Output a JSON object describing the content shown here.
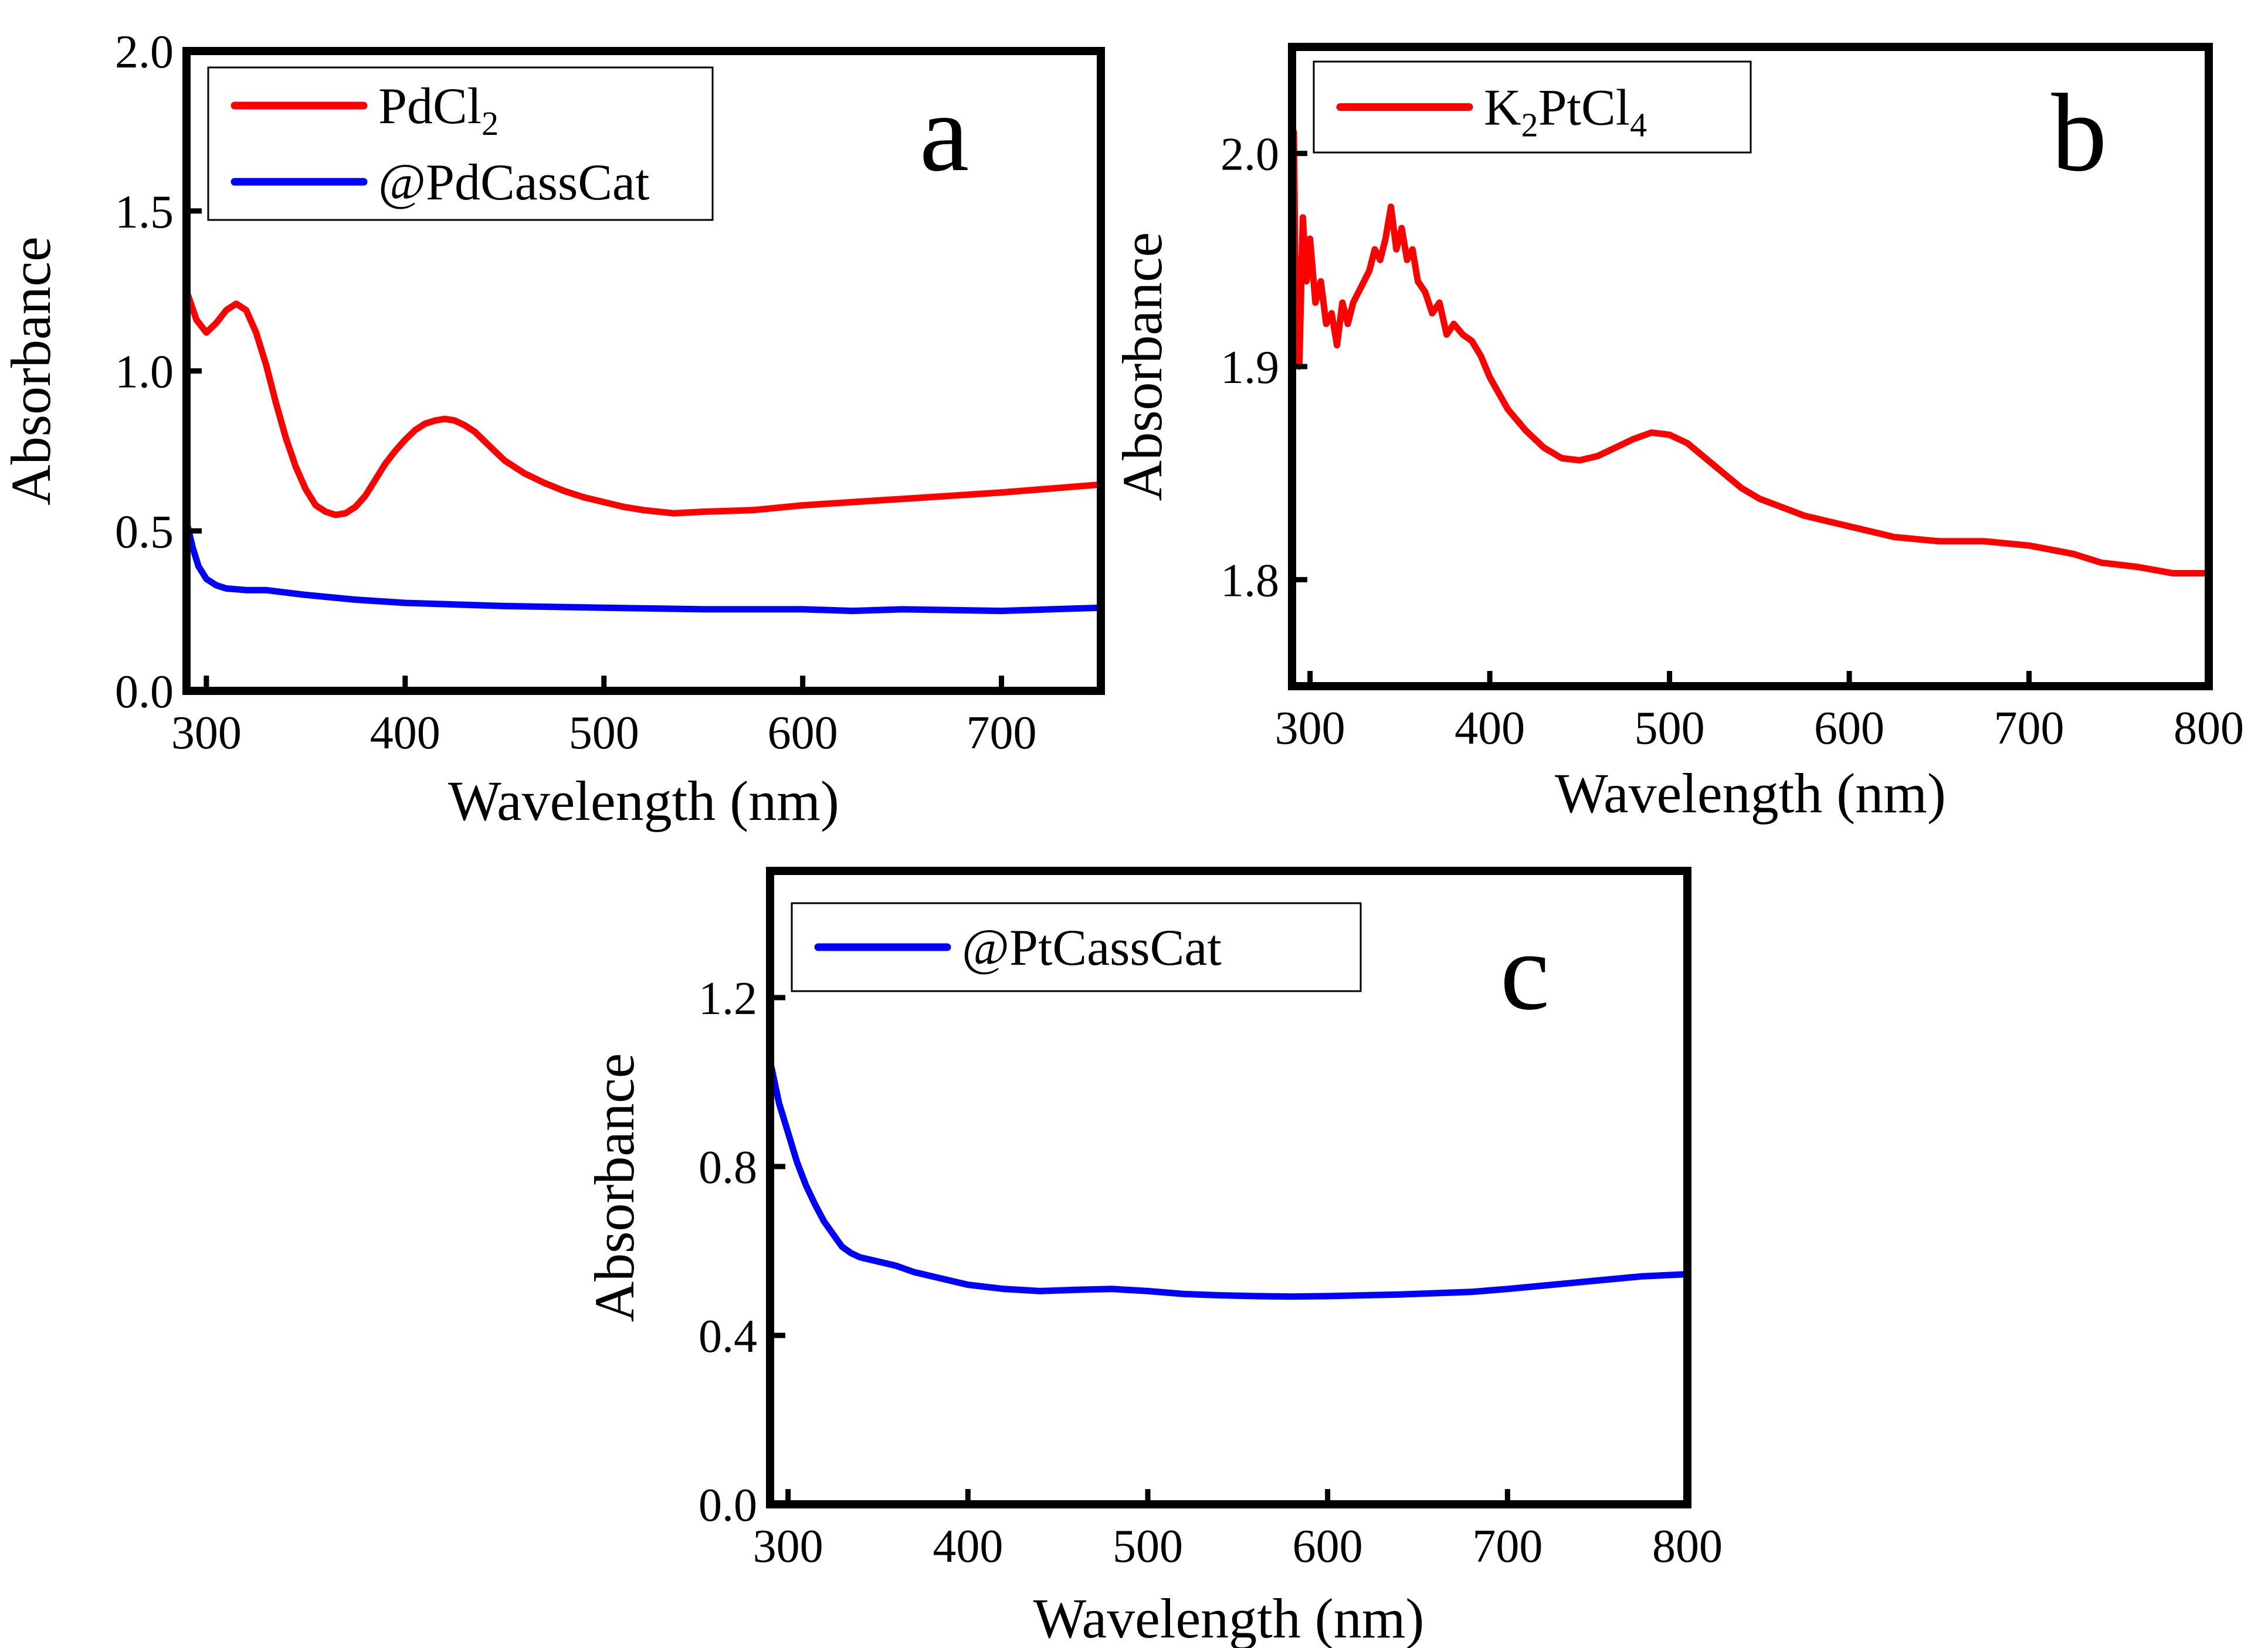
{
  "chart_data": [
    {
      "panel": "a",
      "type": "line",
      "xlabel": "Wavelength (nm)",
      "ylabel": "Absorbance",
      "xlim": [
        290,
        750
      ],
      "ylim": [
        0.0,
        2.0
      ],
      "xticks": [
        300,
        400,
        500,
        600,
        700
      ],
      "yticks": [
        0.0,
        0.5,
        1.0,
        1.5,
        2.0
      ],
      "ytick_decimals": 1,
      "legend_position": "top-left",
      "series": [
        {
          "name": "PdCl2",
          "label_main": "PdCl",
          "label_sub": "2",
          "label_tail": "",
          "color": "#ff0000",
          "x": [
            290,
            295,
            300,
            305,
            310,
            315,
            320,
            325,
            330,
            335,
            340,
            345,
            350,
            355,
            360,
            365,
            370,
            375,
            380,
            385,
            390,
            395,
            400,
            405,
            410,
            415,
            420,
            425,
            430,
            435,
            440,
            445,
            450,
            460,
            470,
            480,
            490,
            500,
            510,
            520,
            535,
            550,
            575,
            600,
            650,
            700,
            750
          ],
          "y": [
            1.25,
            1.16,
            1.12,
            1.15,
            1.19,
            1.21,
            1.19,
            1.12,
            1.02,
            0.9,
            0.79,
            0.7,
            0.63,
            0.58,
            0.56,
            0.55,
            0.555,
            0.575,
            0.61,
            0.66,
            0.71,
            0.75,
            0.785,
            0.815,
            0.835,
            0.845,
            0.85,
            0.845,
            0.83,
            0.81,
            0.78,
            0.75,
            0.72,
            0.68,
            0.65,
            0.625,
            0.605,
            0.59,
            0.575,
            0.565,
            0.555,
            0.56,
            0.565,
            0.58,
            0.6,
            0.62,
            0.645
          ]
        },
        {
          "name": "@PdCassCat",
          "label_main": "@PdCassCat",
          "label_sub": "",
          "label_tail": "",
          "color": "#0000ff",
          "x": [
            290,
            293,
            296,
            300,
            305,
            310,
            320,
            330,
            350,
            375,
            400,
            450,
            500,
            550,
            600,
            625,
            650,
            700,
            725,
            750
          ],
          "y": [
            0.53,
            0.45,
            0.39,
            0.35,
            0.33,
            0.32,
            0.315,
            0.315,
            0.3,
            0.285,
            0.275,
            0.265,
            0.26,
            0.255,
            0.255,
            0.25,
            0.255,
            0.25,
            0.255,
            0.26
          ]
        }
      ]
    },
    {
      "panel": "b",
      "type": "line",
      "xlabel": "Wavelength (nm)",
      "ylabel": "Absorbance",
      "xlim": [
        290,
        800
      ],
      "ylim": [
        1.75,
        2.05
      ],
      "xticks": [
        300,
        400,
        500,
        600,
        700,
        800
      ],
      "yticks": [
        1.8,
        1.9,
        2.0
      ],
      "ytick_decimals": 1,
      "legend_position": "top-left",
      "series": [
        {
          "name": "K2PtCl4",
          "label_main": "K",
          "label_sub": "2",
          "label_tail": "PtCl",
          "label_sub2": "4",
          "color": "#ff0000",
          "x": [
            290,
            291,
            292,
            293,
            294,
            296,
            298,
            300,
            303,
            306,
            309,
            312,
            315,
            318,
            321,
            324,
            327,
            330,
            333,
            336,
            339,
            342,
            345,
            348,
            351,
            354,
            357,
            360,
            364,
            368,
            372,
            376,
            380,
            385,
            390,
            395,
            400,
            410,
            420,
            430,
            440,
            450,
            460,
            470,
            480,
            490,
            500,
            510,
            520,
            530,
            540,
            550,
            575,
            600,
            625,
            650,
            675,
            700,
            725,
            740,
            760,
            780,
            800
          ],
          "y": [
            1.9,
            2.01,
            1.93,
            1.95,
            1.9,
            1.97,
            1.94,
            1.96,
            1.93,
            1.94,
            1.92,
            1.925,
            1.91,
            1.93,
            1.92,
            1.93,
            1.935,
            1.94,
            1.945,
            1.955,
            1.95,
            1.96,
            1.975,
            1.955,
            1.965,
            1.95,
            1.955,
            1.94,
            1.935,
            1.925,
            1.93,
            1.915,
            1.92,
            1.915,
            1.912,
            1.905,
            1.895,
            1.88,
            1.87,
            1.862,
            1.857,
            1.856,
            1.858,
            1.862,
            1.866,
            1.869,
            1.868,
            1.864,
            1.857,
            1.85,
            1.843,
            1.838,
            1.83,
            1.825,
            1.82,
            1.818,
            1.818,
            1.816,
            1.812,
            1.808,
            1.806,
            1.803,
            1.803
          ]
        }
      ]
    },
    {
      "panel": "c",
      "type": "line",
      "xlabel": "Wavelength (nm)",
      "ylabel": "Absorbance",
      "xlim": [
        290,
        800
      ],
      "ylim": [
        0.0,
        1.5
      ],
      "xticks": [
        300,
        400,
        500,
        600,
        700,
        800
      ],
      "yticks": [
        0.0,
        0.4,
        0.8,
        1.2
      ],
      "ytick_decimals": 1,
      "legend_position": "top-left",
      "series": [
        {
          "name": "@PtCassCat",
          "label_main": "@PtCassCat",
          "label_sub": "",
          "label_tail": "",
          "color": "#0000ff",
          "x": [
            290,
            295,
            300,
            305,
            310,
            315,
            320,
            325,
            330,
            335,
            340,
            350,
            360,
            370,
            380,
            400,
            420,
            440,
            460,
            480,
            500,
            520,
            540,
            560,
            580,
            600,
            620,
            640,
            660,
            680,
            700,
            725,
            750,
            775,
            800
          ],
          "y": [
            1.05,
            0.95,
            0.88,
            0.81,
            0.755,
            0.71,
            0.67,
            0.64,
            0.61,
            0.595,
            0.585,
            0.575,
            0.565,
            0.55,
            0.54,
            0.52,
            0.51,
            0.505,
            0.508,
            0.51,
            0.505,
            0.498,
            0.495,
            0.493,
            0.492,
            0.493,
            0.495,
            0.497,
            0.5,
            0.503,
            0.51,
            0.52,
            0.53,
            0.54,
            0.545
          ]
        }
      ]
    }
  ]
}
